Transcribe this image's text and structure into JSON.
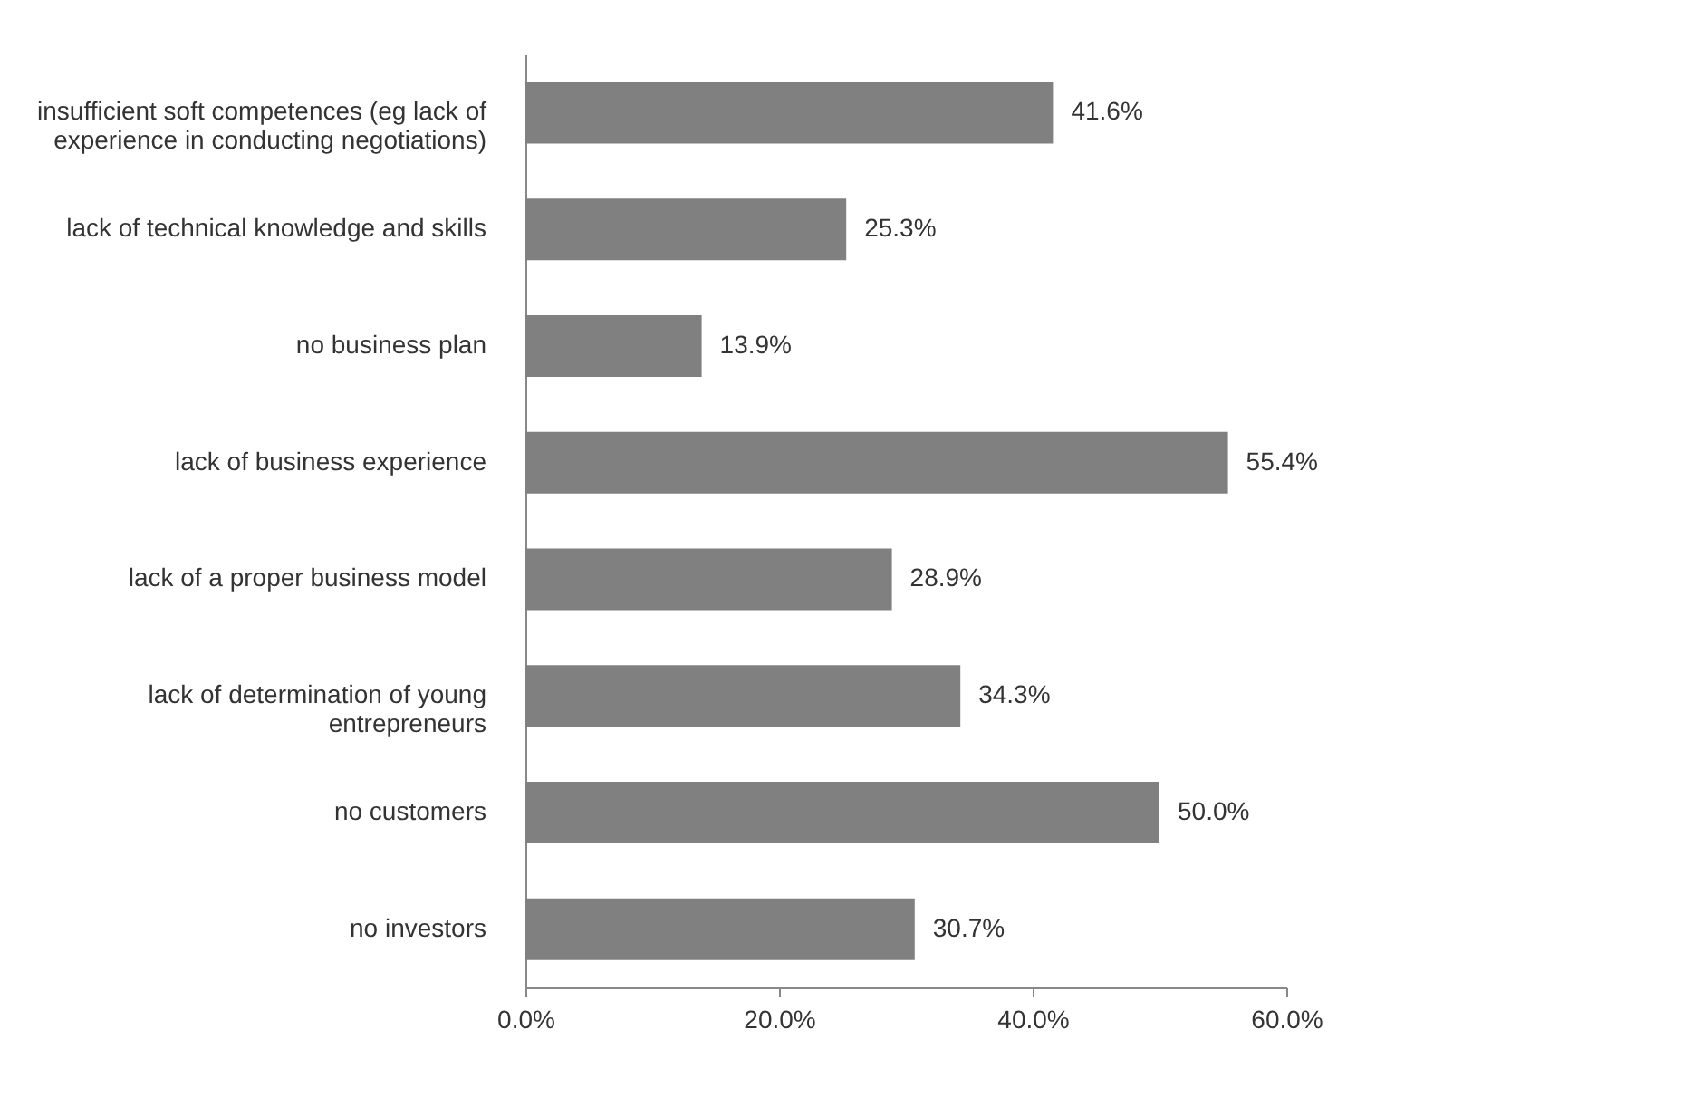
{
  "chart_data": {
    "type": "bar",
    "orientation": "horizontal",
    "categories": [
      "insufficient soft competences (eg lack of experience in conducting negotiations)",
      "lack of technical knowledge and skills",
      "no business plan",
      "lack of business experience",
      "lack of a proper business model",
      "lack of determination of young entrepreneurs",
      "no customers",
      "no investors"
    ],
    "values": [
      41.6,
      25.3,
      13.9,
      55.4,
      28.9,
      34.3,
      50.0,
      30.7
    ],
    "value_labels": [
      "41.6%",
      "25.3%",
      "13.9%",
      "55.4%",
      "28.9%",
      "34.3%",
      "50.0%",
      "30.7%"
    ],
    "color": "#808080",
    "xlim": [
      0,
      60
    ],
    "xticks": [
      {
        "value": 0,
        "label": "0.0%"
      },
      {
        "value": 20,
        "label": "20.0%"
      },
      {
        "value": 40,
        "label": "40.0%"
      },
      {
        "value": 60,
        "label": "60.0%"
      }
    ],
    "grid": false
  }
}
